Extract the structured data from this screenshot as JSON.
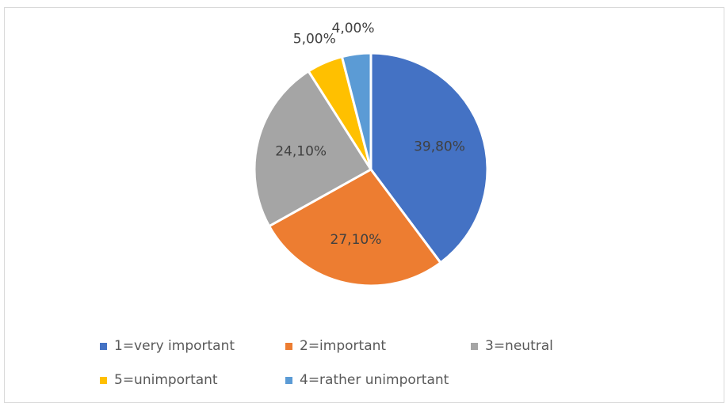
{
  "chart_data": {
    "type": "pie",
    "slices": [
      {
        "label": "1=very important",
        "value": 39.8,
        "display": "39,80%",
        "color": "#4472C4"
      },
      {
        "label": "2=important",
        "value": 27.1,
        "display": "27,10%",
        "color": "#ED7D31"
      },
      {
        "label": "3=neutral",
        "value": 24.1,
        "display": "24,10%",
        "color": "#A5A5A5"
      },
      {
        "label": "5=unimportant",
        "value": 5.0,
        "display": "5,00%",
        "color": "#FFC000"
      },
      {
        "label": "4=rather unimportant",
        "value": 4.0,
        "display": "4,00%",
        "color": "#5B9BD5"
      }
    ],
    "legend_position": "bottom"
  }
}
